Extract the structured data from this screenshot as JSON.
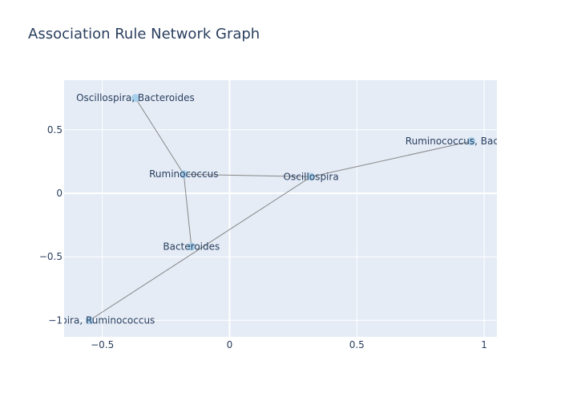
{
  "chart_data": {
    "type": "network",
    "title": "Association Rule Network Graph",
    "xlim": [
      -0.65,
      1.05
    ],
    "ylim": [
      -1.13,
      0.89
    ],
    "x_ticks": [
      -0.5,
      0,
      0.5,
      1
    ],
    "x_tick_labels": [
      "−0.5",
      "0",
      "0.5",
      "1"
    ],
    "y_ticks": [
      0.5,
      0,
      -0.5,
      -1
    ],
    "y_tick_labels": [
      "0.5",
      "0",
      "−0.5",
      "−1"
    ],
    "grid": true,
    "colors": {
      "plot_bg": "#e5ecf6",
      "grid": "#ffffff",
      "edge": "#888888",
      "node": "#a8d0ea",
      "text": "#2a3f5f"
    },
    "nodes": [
      {
        "label": "Oscillospira, Bacteroides",
        "x": -0.37,
        "y": 0.75
      },
      {
        "label": "Ruminococcus",
        "x": -0.18,
        "y": 0.15
      },
      {
        "label": "Oscillospira",
        "x": 0.32,
        "y": 0.13
      },
      {
        "label": "Ruminococcus, Bacteroides",
        "x": 0.95,
        "y": 0.41
      },
      {
        "label": "Bacteroides",
        "x": -0.15,
        "y": -0.42
      },
      {
        "label": "Oscillospira, Ruminococcus",
        "x": -0.55,
        "y": -1.0
      }
    ],
    "edges": [
      [
        0,
        1
      ],
      [
        1,
        2
      ],
      [
        1,
        4
      ],
      [
        2,
        3
      ],
      [
        2,
        5
      ]
    ]
  }
}
